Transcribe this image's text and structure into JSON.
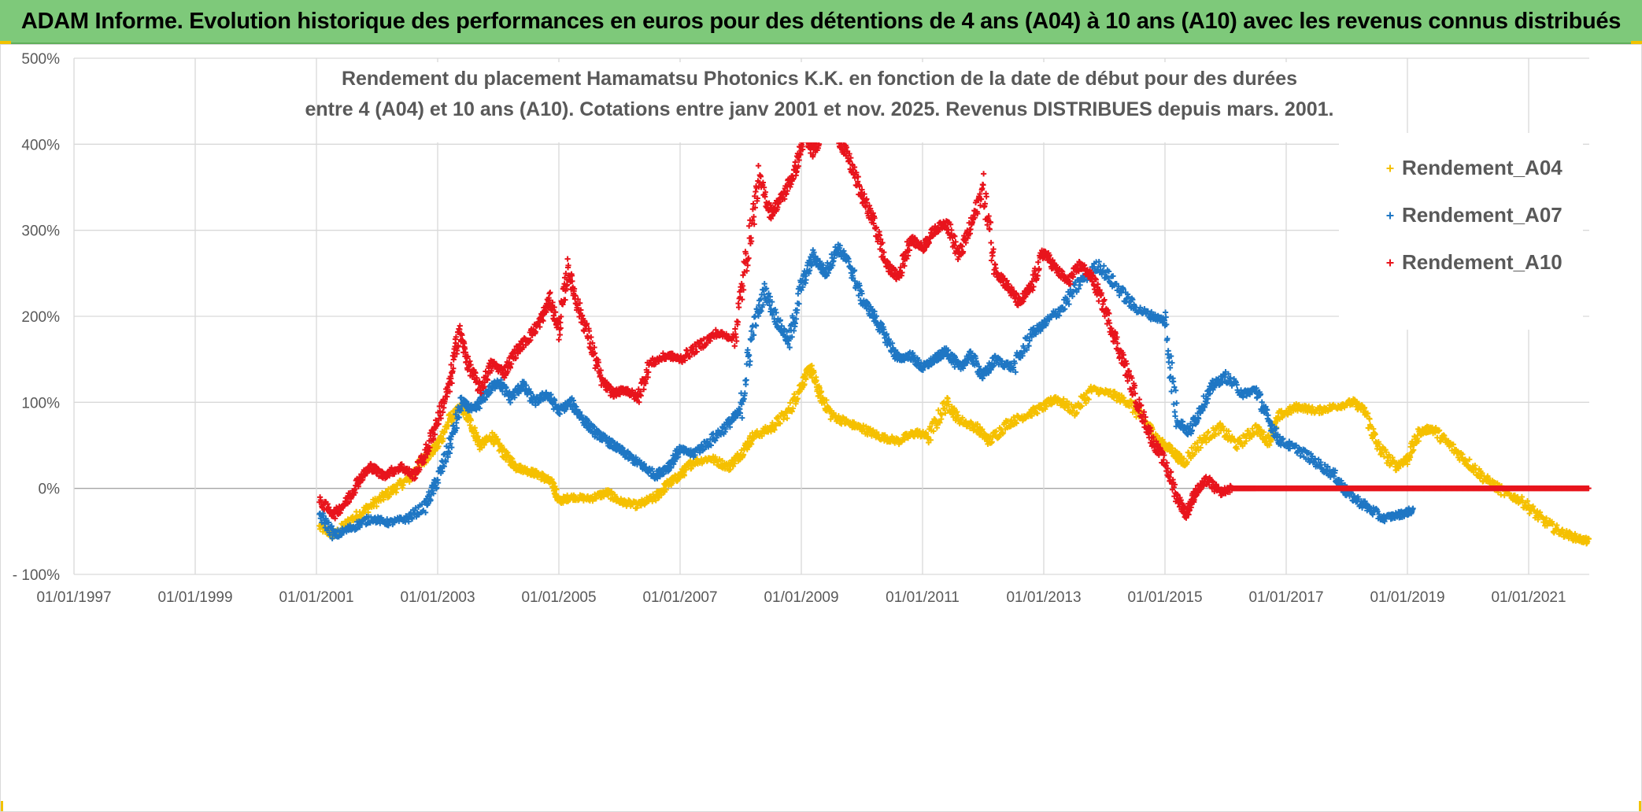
{
  "banner": {
    "title": "ADAM Informe. Evolution historique des performances en euros pour des détentions de 4 ans (A04) à 10 ans (A10) avec les revenus connus distribués"
  },
  "colors": {
    "banner_bg": "#7ec97a",
    "A04": "#f5c000",
    "A07": "#1f77c4",
    "A10": "#e8141c",
    "grid": "#d9d9d9",
    "axis_text": "#595959"
  },
  "chart_data": {
    "type": "scatter",
    "title_line1": "Rendement du placement Hamamatsu Photonics K.K. en fonction de la date de début pour des durées",
    "title_line2": "entre 4 (A04) et 10 ans (A10). Cotations entre janv 2001 et nov. 2025. Revenus DISTRIBUES depuis mars. 2001.",
    "x_ticks": [
      "01/01/1997",
      "01/01/1999",
      "01/01/2001",
      "01/01/2003",
      "01/01/2005",
      "01/01/2007",
      "01/01/2009",
      "01/01/2011",
      "01/01/2013",
      "01/01/2015",
      "01/01/2017",
      "01/01/2019",
      "01/01/2021"
    ],
    "xlim": [
      1997.0,
      2022.0
    ],
    "y_ticks": [
      "500%",
      "400%",
      "300%",
      "200%",
      "100%",
      "0%",
      "- 100%"
    ],
    "y_tick_values": [
      500,
      400,
      300,
      200,
      100,
      0,
      -100
    ],
    "ylim": [
      -100,
      500
    ],
    "grid": true,
    "legend_position": "right",
    "marker": "+",
    "series": [
      {
        "name": "Rendement_A04",
        "points": [
          [
            2001.05,
            -45
          ],
          [
            2001.3,
            -55
          ],
          [
            2001.6,
            -35
          ],
          [
            2001.9,
            -20
          ],
          [
            2002.2,
            -5
          ],
          [
            2002.5,
            10
          ],
          [
            2002.8,
            35
          ],
          [
            2003.0,
            50
          ],
          [
            2003.2,
            80
          ],
          [
            2003.4,
            95
          ],
          [
            2003.55,
            75
          ],
          [
            2003.7,
            50
          ],
          [
            2003.9,
            60
          ],
          [
            2004.1,
            40
          ],
          [
            2004.3,
            25
          ],
          [
            2004.5,
            20
          ],
          [
            2004.7,
            15
          ],
          [
            2004.9,
            5
          ],
          [
            2005.0,
            -15
          ],
          [
            2005.2,
            -10
          ],
          [
            2005.5,
            -12
          ],
          [
            2005.8,
            -5
          ],
          [
            2006.0,
            -15
          ],
          [
            2006.3,
            -20
          ],
          [
            2006.6,
            -10
          ],
          [
            2006.8,
            5
          ],
          [
            2007.0,
            15
          ],
          [
            2007.2,
            30
          ],
          [
            2007.5,
            35
          ],
          [
            2007.8,
            25
          ],
          [
            2008.0,
            40
          ],
          [
            2008.2,
            60
          ],
          [
            2008.5,
            70
          ],
          [
            2008.8,
            90
          ],
          [
            2009.0,
            120
          ],
          [
            2009.15,
            140
          ],
          [
            2009.3,
            110
          ],
          [
            2009.5,
            85
          ],
          [
            2009.8,
            75
          ],
          [
            2010.0,
            70
          ],
          [
            2010.3,
            60
          ],
          [
            2010.6,
            55
          ],
          [
            2010.9,
            65
          ],
          [
            2011.1,
            60
          ],
          [
            2011.4,
            100
          ],
          [
            2011.6,
            80
          ],
          [
            2011.9,
            70
          ],
          [
            2012.1,
            55
          ],
          [
            2012.4,
            75
          ],
          [
            2012.7,
            85
          ],
          [
            2013.0,
            95
          ],
          [
            2013.2,
            105
          ],
          [
            2013.5,
            90
          ],
          [
            2013.8,
            115
          ],
          [
            2014.1,
            110
          ],
          [
            2014.4,
            100
          ],
          [
            2014.7,
            75
          ],
          [
            2014.9,
            55
          ],
          [
            2015.1,
            45
          ],
          [
            2015.3,
            30
          ],
          [
            2015.6,
            55
          ],
          [
            2015.9,
            70
          ],
          [
            2016.2,
            50
          ],
          [
            2016.5,
            70
          ],
          [
            2016.7,
            55
          ],
          [
            2016.9,
            85
          ],
          [
            2017.2,
            95
          ],
          [
            2017.5,
            90
          ],
          [
            2017.8,
            95
          ],
          [
            2018.1,
            100
          ],
          [
            2018.3,
            90
          ],
          [
            2018.5,
            50
          ],
          [
            2018.8,
            25
          ],
          [
            2019.0,
            35
          ],
          [
            2019.2,
            65
          ],
          [
            2019.4,
            70
          ],
          [
            2019.7,
            50
          ],
          [
            2020.0,
            30
          ],
          [
            2020.3,
            10
          ],
          [
            2020.6,
            -5
          ],
          [
            2020.9,
            -15
          ],
          [
            2021.2,
            -35
          ],
          [
            2021.5,
            -50
          ],
          [
            2021.8,
            -58
          ],
          [
            2022.0,
            -62
          ]
        ]
      },
      {
        "name": "Rendement_A07",
        "points": [
          [
            2001.05,
            -30
          ],
          [
            2001.3,
            -55
          ],
          [
            2001.6,
            -45
          ],
          [
            2001.9,
            -35
          ],
          [
            2002.2,
            -40
          ],
          [
            2002.5,
            -35
          ],
          [
            2002.8,
            -20
          ],
          [
            2003.0,
            10
          ],
          [
            2003.2,
            50
          ],
          [
            2003.4,
            100
          ],
          [
            2003.6,
            90
          ],
          [
            2003.8,
            110
          ],
          [
            2004.0,
            125
          ],
          [
            2004.2,
            105
          ],
          [
            2004.4,
            120
          ],
          [
            2004.6,
            100
          ],
          [
            2004.8,
            110
          ],
          [
            2005.0,
            90
          ],
          [
            2005.2,
            100
          ],
          [
            2005.4,
            80
          ],
          [
            2005.6,
            65
          ],
          [
            2005.8,
            55
          ],
          [
            2006.0,
            45
          ],
          [
            2006.2,
            35
          ],
          [
            2006.4,
            25
          ],
          [
            2006.6,
            15
          ],
          [
            2006.8,
            25
          ],
          [
            2007.0,
            45
          ],
          [
            2007.2,
            40
          ],
          [
            2007.5,
            55
          ],
          [
            2007.8,
            75
          ],
          [
            2008.0,
            90
          ],
          [
            2008.2,
            185
          ],
          [
            2008.4,
            230
          ],
          [
            2008.6,
            195
          ],
          [
            2008.8,
            170
          ],
          [
            2009.0,
            235
          ],
          [
            2009.2,
            270
          ],
          [
            2009.4,
            250
          ],
          [
            2009.6,
            280
          ],
          [
            2009.8,
            260
          ],
          [
            2010.0,
            220
          ],
          [
            2010.2,
            200
          ],
          [
            2010.4,
            175
          ],
          [
            2010.6,
            150
          ],
          [
            2010.8,
            155
          ],
          [
            2011.0,
            140
          ],
          [
            2011.2,
            150
          ],
          [
            2011.4,
            160
          ],
          [
            2011.6,
            140
          ],
          [
            2011.8,
            155
          ],
          [
            2012.0,
            130
          ],
          [
            2012.2,
            150
          ],
          [
            2012.5,
            140
          ],
          [
            2012.8,
            180
          ],
          [
            2013.0,
            190
          ],
          [
            2013.3,
            210
          ],
          [
            2013.6,
            240
          ],
          [
            2013.9,
            260
          ],
          [
            2014.2,
            235
          ],
          [
            2014.5,
            210
          ],
          [
            2014.8,
            200
          ],
          [
            2015.0,
            195
          ],
          [
            2015.2,
            80
          ],
          [
            2015.4,
            65
          ],
          [
            2015.6,
            95
          ],
          [
            2015.8,
            120
          ],
          [
            2016.0,
            130
          ],
          [
            2016.3,
            110
          ],
          [
            2016.5,
            115
          ],
          [
            2016.7,
            80
          ],
          [
            2016.9,
            55
          ],
          [
            2017.2,
            45
          ],
          [
            2017.5,
            30
          ],
          [
            2017.8,
            15
          ],
          [
            2018.0,
            -5
          ],
          [
            2018.3,
            -20
          ],
          [
            2018.6,
            -35
          ],
          [
            2018.9,
            -30
          ],
          [
            2019.1,
            -25
          ]
        ]
      },
      {
        "name": "Rendement_A10",
        "points": [
          [
            2001.05,
            -15
          ],
          [
            2001.3,
            -30
          ],
          [
            2001.5,
            -15
          ],
          [
            2001.7,
            10
          ],
          [
            2001.9,
            25
          ],
          [
            2002.1,
            15
          ],
          [
            2002.4,
            25
          ],
          [
            2002.6,
            15
          ],
          [
            2002.8,
            40
          ],
          [
            2003.0,
            80
          ],
          [
            2003.2,
            120
          ],
          [
            2003.35,
            185
          ],
          [
            2003.5,
            145
          ],
          [
            2003.7,
            115
          ],
          [
            2003.9,
            145
          ],
          [
            2004.1,
            135
          ],
          [
            2004.3,
            160
          ],
          [
            2004.5,
            175
          ],
          [
            2004.7,
            195
          ],
          [
            2004.85,
            220
          ],
          [
            2005.0,
            185
          ],
          [
            2005.15,
            255
          ],
          [
            2005.3,
            215
          ],
          [
            2005.5,
            175
          ],
          [
            2005.7,
            125
          ],
          [
            2005.9,
            110
          ],
          [
            2006.1,
            115
          ],
          [
            2006.3,
            105
          ],
          [
            2006.5,
            145
          ],
          [
            2006.8,
            155
          ],
          [
            2007.0,
            150
          ],
          [
            2007.3,
            165
          ],
          [
            2007.6,
            180
          ],
          [
            2007.9,
            175
          ],
          [
            2008.1,
            270
          ],
          [
            2008.3,
            360
          ],
          [
            2008.5,
            320
          ],
          [
            2008.7,
            340
          ],
          [
            2008.9,
            370
          ],
          [
            2009.05,
            410
          ],
          [
            2009.2,
            390
          ],
          [
            2009.4,
            430
          ],
          [
            2009.6,
            410
          ],
          [
            2009.8,
            380
          ],
          [
            2010.0,
            340
          ],
          [
            2010.2,
            310
          ],
          [
            2010.4,
            260
          ],
          [
            2010.6,
            245
          ],
          [
            2010.8,
            290
          ],
          [
            2011.0,
            280
          ],
          [
            2011.2,
            300
          ],
          [
            2011.4,
            310
          ],
          [
            2011.6,
            270
          ],
          [
            2011.8,
            305
          ],
          [
            2012.0,
            350
          ],
          [
            2012.2,
            255
          ],
          [
            2012.4,
            235
          ],
          [
            2012.6,
            215
          ],
          [
            2012.8,
            235
          ],
          [
            2013.0,
            275
          ],
          [
            2013.2,
            255
          ],
          [
            2013.4,
            240
          ],
          [
            2013.6,
            260
          ],
          [
            2013.8,
            245
          ],
          [
            2014.0,
            210
          ],
          [
            2014.2,
            170
          ],
          [
            2014.4,
            130
          ],
          [
            2014.6,
            90
          ],
          [
            2014.8,
            55
          ],
          [
            2015.0,
            30
          ],
          [
            2015.2,
            -10
          ],
          [
            2015.35,
            -30
          ],
          [
            2015.5,
            -5
          ],
          [
            2015.7,
            10
          ],
          [
            2015.9,
            -5
          ],
          [
            2016.1,
            0
          ],
          [
            2016.5,
            0
          ],
          [
            2017.0,
            0
          ],
          [
            2017.5,
            0
          ],
          [
            2018.0,
            0
          ],
          [
            2018.5,
            0
          ],
          [
            2019.0,
            0
          ],
          [
            2019.5,
            0
          ],
          [
            2020.0,
            0
          ],
          [
            2020.5,
            0
          ],
          [
            2021.0,
            0
          ],
          [
            2021.5,
            0
          ],
          [
            2022.0,
            0
          ]
        ]
      }
    ]
  }
}
